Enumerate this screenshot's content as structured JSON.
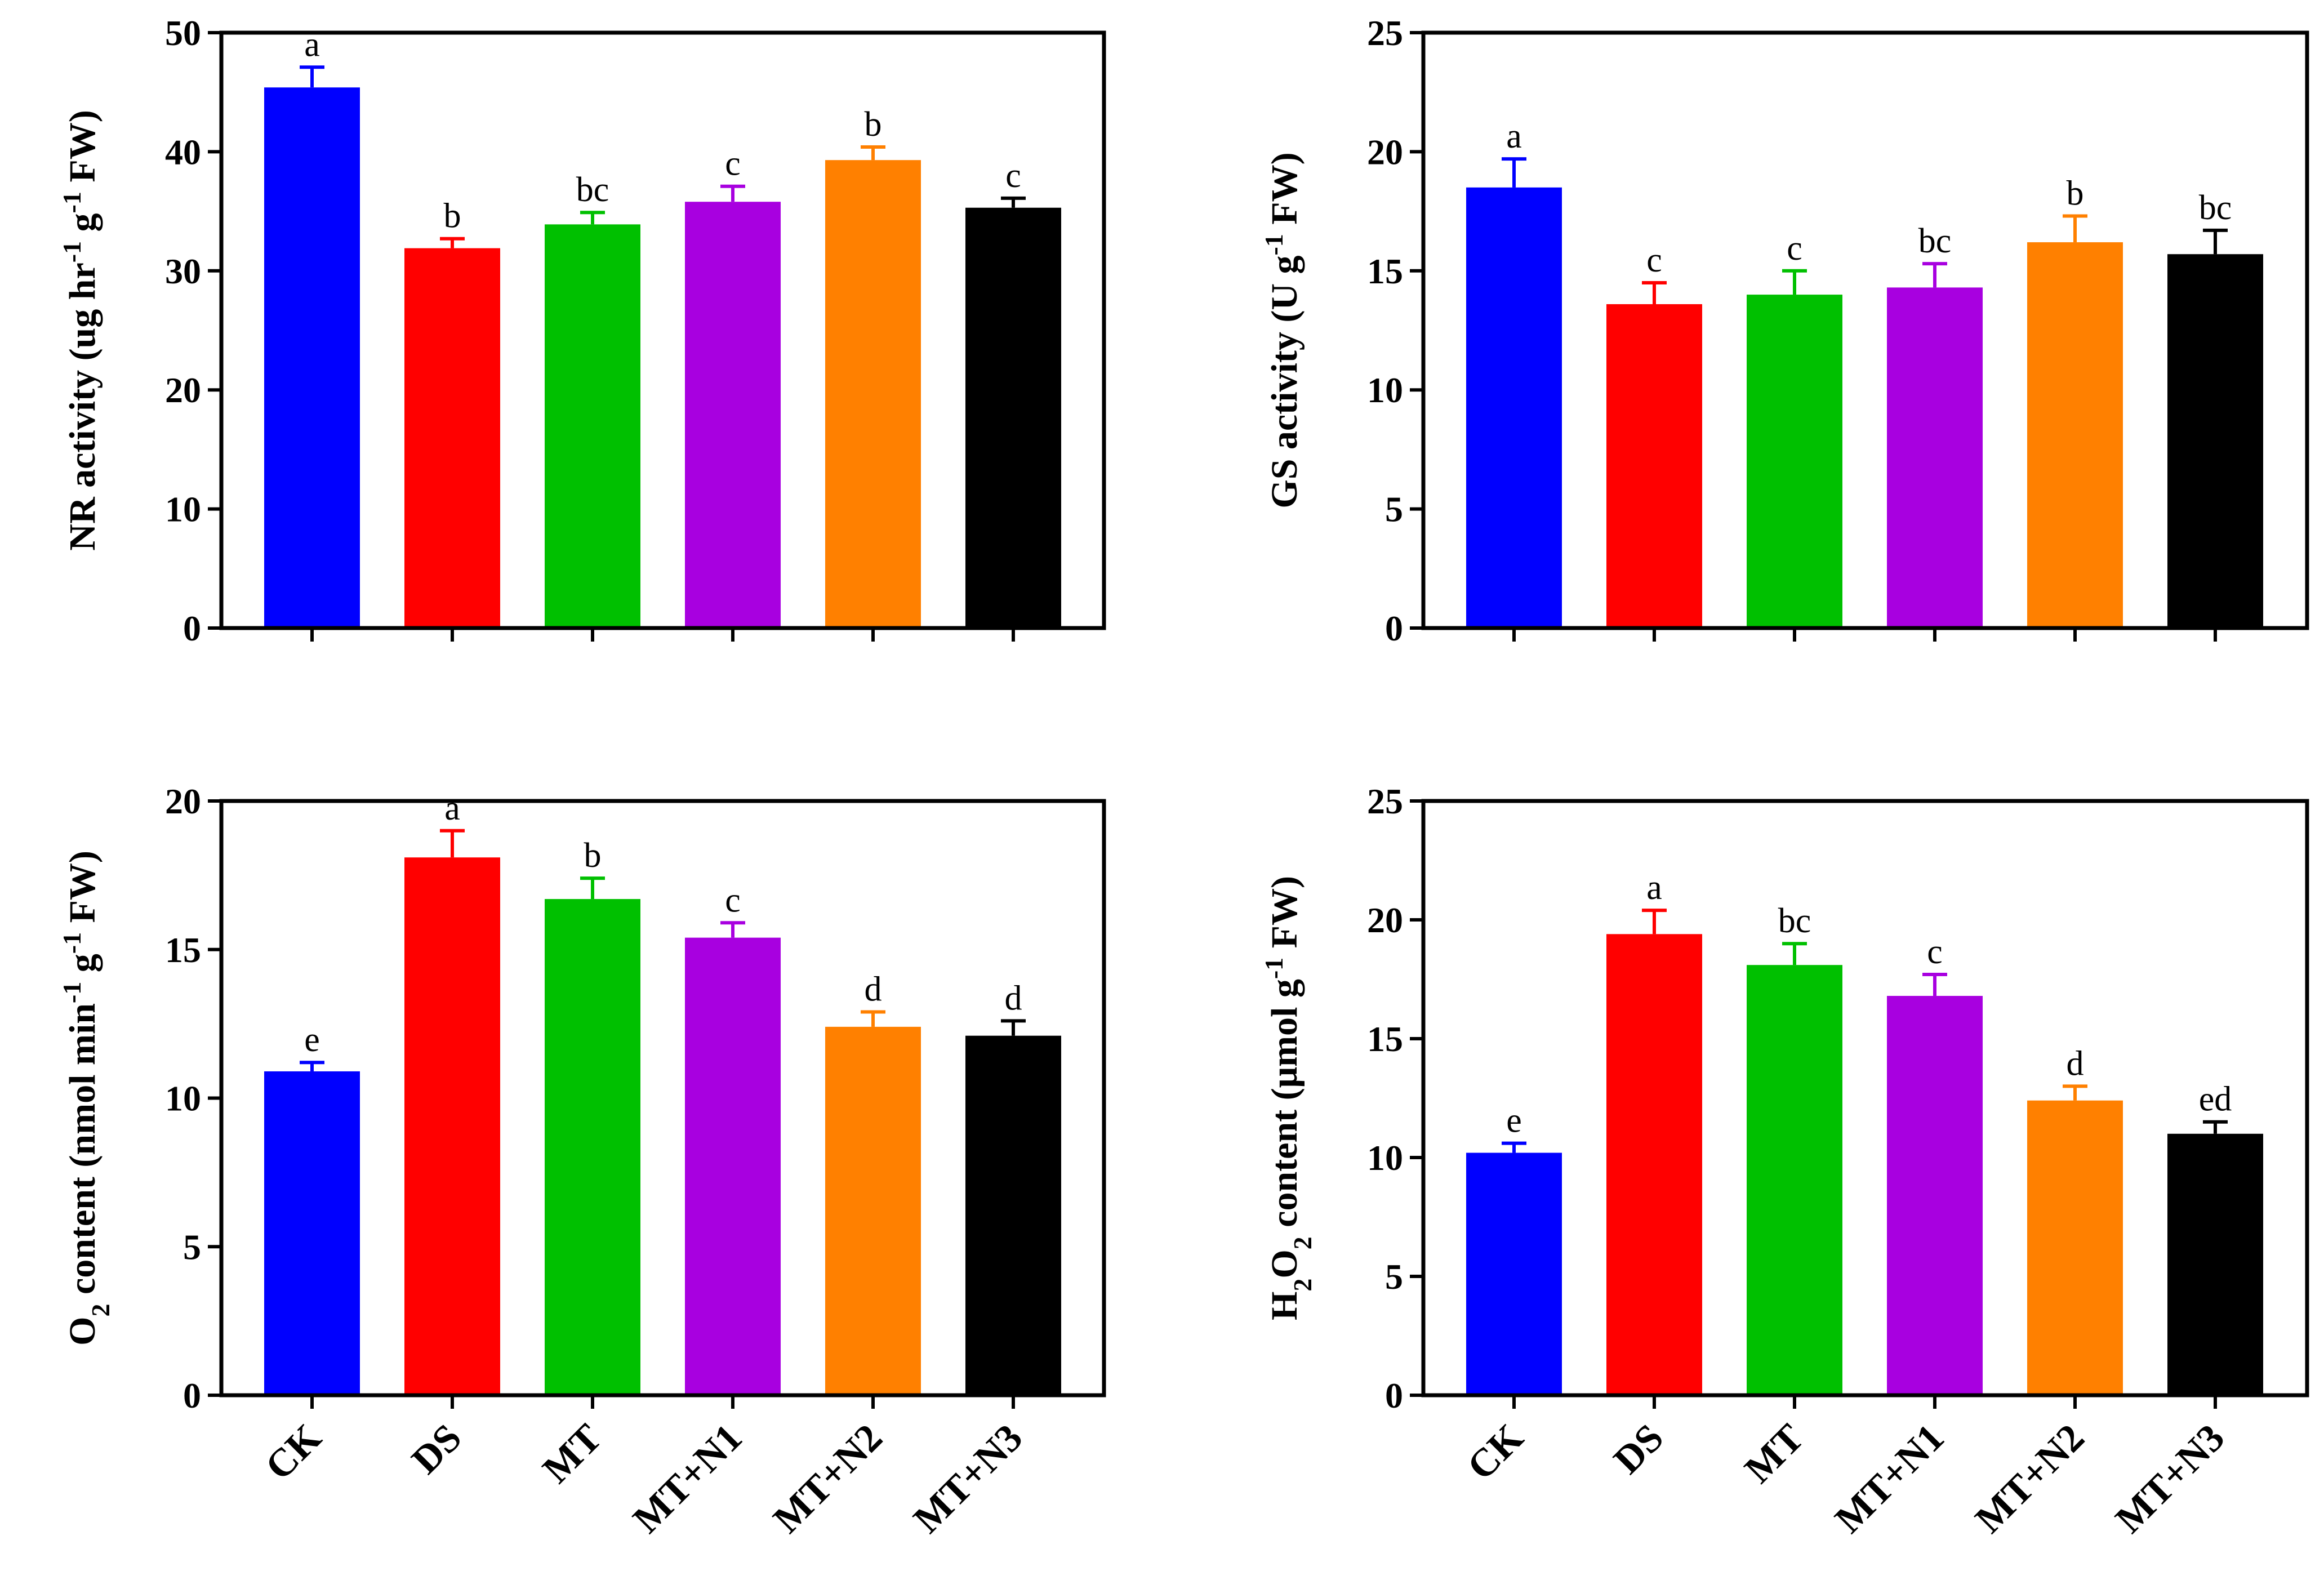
{
  "colors": {
    "CK": "#0000FF",
    "DS": "#FF0000",
    "MT": "#00C000",
    "MT+N1": "#A800E0",
    "MT+N2": "#FF8000",
    "MT+N3": "#000000",
    "axis": "#000000"
  },
  "chart_data": [
    {
      "type": "bar",
      "categories": [
        "CK",
        "DS",
        "MT",
        "MT+N1",
        "MT+N2",
        "MT+N3"
      ],
      "values": [
        45.4,
        31.9,
        33.9,
        35.8,
        39.3,
        35.3
      ],
      "errors": [
        1.7,
        0.8,
        1.0,
        1.3,
        1.1,
        0.8
      ],
      "significance": [
        "a",
        "b",
        "bc",
        "c",
        "b",
        "c"
      ],
      "ylabel": [
        {
          "text": "NR activity  (ug hr"
        },
        {
          "text": "-1",
          "sup": true
        },
        {
          "text": " g"
        },
        {
          "text": "-1",
          "sup": true
        },
        {
          "text": " FW)"
        }
      ],
      "ylim": [
        0,
        50
      ],
      "yticks": [
        0,
        10,
        20,
        30,
        40,
        50
      ],
      "show_xlabels": false
    },
    {
      "type": "bar",
      "categories": [
        "CK",
        "DS",
        "MT",
        "MT+N1",
        "MT+N2",
        "MT+N3"
      ],
      "values": [
        18.5,
        13.6,
        14.0,
        14.3,
        16.2,
        15.7
      ],
      "errors": [
        1.2,
        0.9,
        1.0,
        1.0,
        1.1,
        1.0
      ],
      "significance": [
        "a",
        "c",
        "c",
        "bc",
        "b",
        "bc"
      ],
      "ylabel": [
        {
          "text": "GS activity (U g"
        },
        {
          "text": "-1",
          "sup": true
        },
        {
          "text": " FW)"
        }
      ],
      "ylim": [
        0,
        25
      ],
      "yticks": [
        0,
        5,
        10,
        15,
        20,
        25
      ],
      "show_xlabels": false
    },
    {
      "type": "bar",
      "categories": [
        "CK",
        "DS",
        "MT",
        "MT+N1",
        "MT+N2",
        "MT+N3"
      ],
      "values": [
        10.9,
        18.1,
        16.7,
        15.4,
        12.4,
        12.1
      ],
      "errors": [
        0.3,
        0.9,
        0.7,
        0.5,
        0.5,
        0.5
      ],
      "significance": [
        "e",
        "a",
        "b",
        "c",
        "d",
        "d"
      ],
      "ylabel": [
        {
          "text": "O"
        },
        {
          "text": "2",
          "sub": true
        },
        {
          "text": " content (nmol min"
        },
        {
          "text": "-1",
          "sup": true
        },
        {
          "text": " g"
        },
        {
          "text": "-1",
          "sup": true
        },
        {
          "text": " FW)"
        }
      ],
      "ylim": [
        0,
        20
      ],
      "yticks": [
        0,
        5,
        10,
        15,
        20
      ],
      "show_xlabels": true
    },
    {
      "type": "bar",
      "categories": [
        "CK",
        "DS",
        "MT",
        "MT+N1",
        "MT+N2",
        "MT+N3"
      ],
      "values": [
        10.2,
        19.4,
        18.1,
        16.8,
        12.4,
        11.0
      ],
      "errors": [
        0.4,
        1.0,
        0.9,
        0.9,
        0.6,
        0.5
      ],
      "significance": [
        "e",
        "a",
        "bc",
        "c",
        "d",
        "ed"
      ],
      "ylabel": [
        {
          "text": "H"
        },
        {
          "text": "2",
          "sub": true
        },
        {
          "text": "O"
        },
        {
          "text": "2",
          "sub": true
        },
        {
          "text": " content (μmol g"
        },
        {
          "text": "-1",
          "sup": true
        },
        {
          "text": " FW)"
        }
      ],
      "ylim": [
        0,
        25
      ],
      "yticks": [
        0,
        5,
        10,
        15,
        20,
        25
      ],
      "show_xlabels": true
    }
  ]
}
